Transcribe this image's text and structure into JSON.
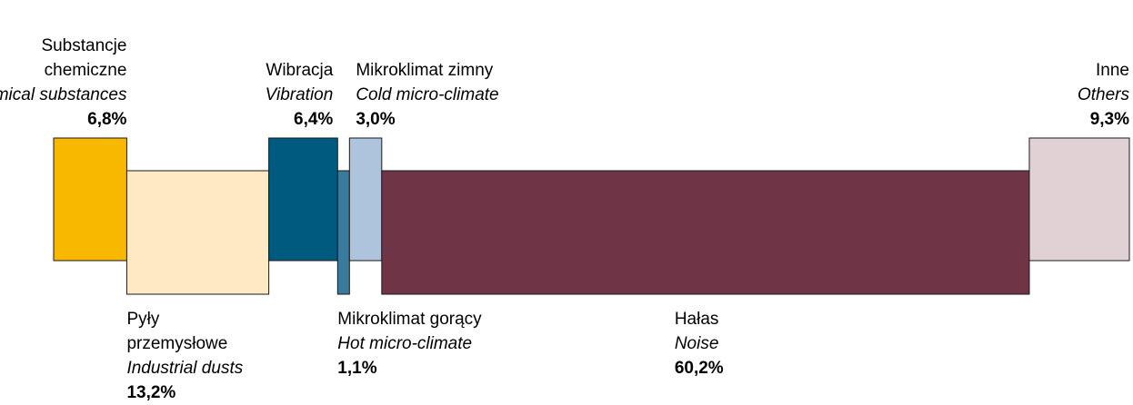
{
  "chart_data": {
    "type": "variable-width",
    "categories": [
      "Substancje chemiczne",
      "Pyły przemysłowe",
      "Wibracja",
      "Mikroklimat gorący",
      "Mikroklimat zimny",
      "Hałas",
      "Inne"
    ],
    "categories_en": [
      "Chemical substances",
      "Industrial dusts",
      "Vibration",
      "Hot micro-climate",
      "Cold micro-climate",
      "Noise",
      "Others"
    ],
    "values": [
      6.8,
      13.2,
      6.4,
      1.1,
      3.0,
      60.2,
      9.3
    ],
    "value_labels": [
      "6,8%",
      "13,2%",
      "6,4%",
      "1,1%",
      "3,0%",
      "60,2%",
      "9,3%"
    ],
    "colors": [
      "#f9b800",
      "#fde9c4",
      "#005a80",
      "#3a7a9c",
      "#adc4dc",
      "#6f3547",
      "#e2d1d4"
    ]
  }
}
